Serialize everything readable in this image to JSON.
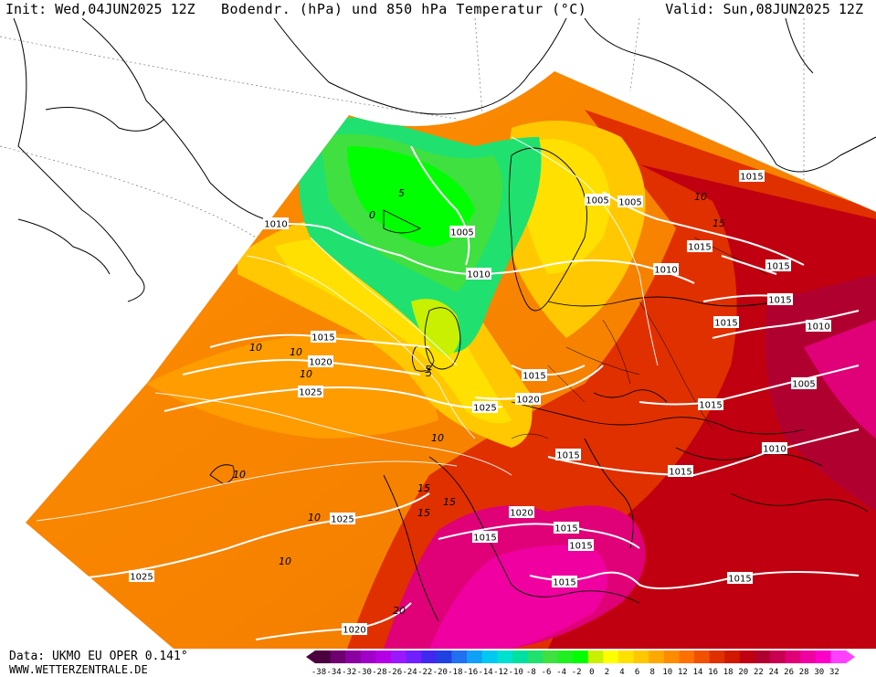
{
  "header": {
    "init": "Init: Wed,04JUN2025 12Z",
    "title": "Bodendr. (hPa) und 850 hPa Temperatur (°C)",
    "valid": "Valid: Sun,08JUN2025 12Z"
  },
  "footer": {
    "data": "Data: UKMO EU OPER 0.141°",
    "site": "WWW.WETTERZENTRALE.DE"
  },
  "colorbar": {
    "labels": [
      "-38",
      "-34",
      "-32",
      "-30",
      "-28",
      "-26",
      "-24",
      "-22",
      "-20",
      "-18",
      "-16",
      "-14",
      "-12",
      "-10",
      "-8",
      "-6",
      "-4",
      "-2",
      "0",
      "2",
      "4",
      "6",
      "8",
      "10",
      "12",
      "14",
      "16",
      "18",
      "20",
      "22",
      "24",
      "26",
      "28",
      "30",
      "32"
    ],
    "colors": [
      "#4b0040",
      "#6e0070",
      "#8a00a0",
      "#a000c8",
      "#b400e6",
      "#9a18ff",
      "#7020ff",
      "#4028f0",
      "#2040e0",
      "#2070f0",
      "#10a0f8",
      "#00c8f0",
      "#00e0d0",
      "#00e0a0",
      "#20e070",
      "#40e040",
      "#20f020",
      "#00ff00",
      "#c8f000",
      "#ffff00",
      "#ffe000",
      "#ffc800",
      "#ffa800",
      "#ff8c00",
      "#ff7000",
      "#f05000",
      "#e03000",
      "#d01800",
      "#c00010",
      "#b00030",
      "#c80050",
      "#e00078",
      "#f000a0",
      "#ff00c8",
      "#ff40ff"
    ]
  },
  "pressure_labels": [
    {
      "text": "1010",
      "lon": "Iceland W"
    },
    {
      "text": "1005",
      "lon": "Norwegian Sea"
    },
    {
      "text": "1010",
      "lon": "North Sea"
    },
    {
      "text": "1005",
      "lon": "Sweden"
    },
    {
      "text": "1005",
      "lon": "Finland"
    },
    {
      "text": "1015",
      "lon": "Barents"
    },
    {
      "text": "1010",
      "lon": "Baltic"
    },
    {
      "text": "1015",
      "lon": "Russia"
    },
    {
      "text": "1015",
      "lon": "Russia E"
    },
    {
      "text": "1015",
      "lon": "Moscow"
    },
    {
      "text": "1015",
      "lon": "Volga"
    },
    {
      "text": "1010",
      "lon": "Urals"
    },
    {
      "text": "1005",
      "lon": "Caspian"
    },
    {
      "text": "1015",
      "lon": "Atlantic"
    },
    {
      "text": "1020",
      "lon": "Atlantic"
    },
    {
      "text": "1025",
      "lon": "Atlantic"
    },
    {
      "text": "1015",
      "lon": "Denmark"
    },
    {
      "text": "1020",
      "lon": "Netherlands"
    },
    {
      "text": "1025",
      "lon": "England"
    },
    {
      "text": "1015",
      "lon": "Ukraine"
    },
    {
      "text": "1015",
      "lon": "Alps"
    },
    {
      "text": "1015",
      "lon": "Balkans"
    },
    {
      "text": "1010",
      "lon": "Black Sea"
    },
    {
      "text": "1020",
      "lon": "Biscay"
    },
    {
      "text": "1015",
      "lon": "Spain"
    },
    {
      "text": "1015",
      "lon": "Algeria"
    },
    {
      "text": "1015",
      "lon": "Tunisia"
    },
    {
      "text": "1015",
      "lon": "Libya"
    },
    {
      "text": "1015",
      "lon": "Turkey"
    },
    {
      "text": "1025",
      "lon": "Azores"
    },
    {
      "text": "1025",
      "lon": "Atlantic S"
    },
    {
      "text": "1020",
      "lon": "Morocco"
    }
  ],
  "temp_labels": [
    "5",
    "0",
    "5",
    "10",
    "10",
    "10",
    "5",
    "10",
    "10",
    "15",
    "15",
    "10",
    "10",
    "15",
    "10",
    "15",
    "20"
  ]
}
